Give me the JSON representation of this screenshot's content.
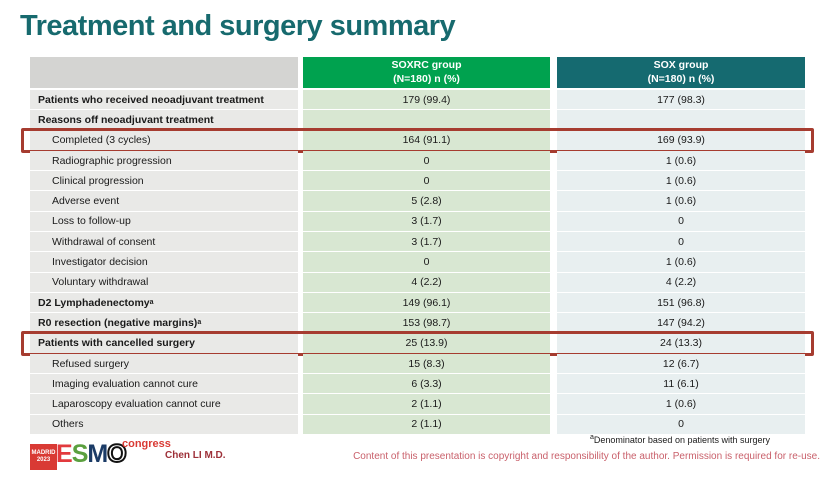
{
  "title": "Treatment and surgery summary",
  "colors": {
    "title_teal": "#176a6e",
    "soxrc_header_green": "#00a24f",
    "sox_header_teal": "#156a70",
    "highlight_box_red": "#a63c30",
    "label_cell_gray": "#e9e9e7",
    "soxrc_cell_green": "#d8e7d2",
    "sox_cell_blue": "#e8eff0"
  },
  "table": {
    "columns": [
      {
        "name": "SOXRC group",
        "sub": "(N=180)  n (%)"
      },
      {
        "name": "SOX group",
        "sub": "(N=180)  n (%)"
      }
    ],
    "rows": [
      {
        "label": "Patients who received neoadjuvant treatment",
        "bold": true,
        "indent": false,
        "highlight": false,
        "soxrc": "179 (99.4)",
        "sox": "177 (98.3)"
      },
      {
        "label": "Reasons off neoadjuvant treatment",
        "bold": true,
        "indent": false,
        "highlight": false,
        "soxrc": "",
        "sox": ""
      },
      {
        "label": "Completed (3 cycles)",
        "bold": false,
        "indent": true,
        "highlight": true,
        "soxrc": "164 (91.1)",
        "sox": "169 (93.9)"
      },
      {
        "label": "Radiographic progression",
        "bold": false,
        "indent": true,
        "highlight": false,
        "soxrc": "0",
        "sox": "1 (0.6)"
      },
      {
        "label": "Clinical progression",
        "bold": false,
        "indent": true,
        "highlight": false,
        "soxrc": "0",
        "sox": "1 (0.6)"
      },
      {
        "label": "Adverse event",
        "bold": false,
        "indent": true,
        "highlight": false,
        "soxrc": "5 (2.8)",
        "sox": "1 (0.6)"
      },
      {
        "label": "Loss to follow-up",
        "bold": false,
        "indent": true,
        "highlight": false,
        "soxrc": "3 (1.7)",
        "sox": "0"
      },
      {
        "label": "Withdrawal of consent",
        "bold": false,
        "indent": true,
        "highlight": false,
        "soxrc": "3 (1.7)",
        "sox": "0"
      },
      {
        "label": "Investigator decision",
        "bold": false,
        "indent": true,
        "highlight": false,
        "soxrc": "0",
        "sox": "1 (0.6)"
      },
      {
        "label": "Voluntary withdrawal",
        "bold": false,
        "indent": true,
        "highlight": false,
        "soxrc": "4 (2.2)",
        "sox": "4 (2.2)"
      },
      {
        "label": "D2 Lymphadenectomy",
        "sup": "a",
        "bold": true,
        "indent": false,
        "highlight": false,
        "soxrc": "149 (96.1)",
        "sox": "151 (96.8)"
      },
      {
        "label": "R0 resection (negative margins)",
        "sup": "a",
        "bold": true,
        "indent": false,
        "highlight": false,
        "soxrc": "153 (98.7)",
        "sox": "147 (94.2)"
      },
      {
        "label": "Patients with cancelled surgery",
        "bold": true,
        "indent": false,
        "highlight": true,
        "soxrc": "25 (13.9)",
        "sox": "24 (13.3)"
      },
      {
        "label": "Refused surgery",
        "bold": false,
        "indent": true,
        "highlight": false,
        "soxrc": "15 (8.3)",
        "sox": "12 (6.7)"
      },
      {
        "label": "Imaging evaluation cannot cure",
        "bold": false,
        "indent": true,
        "highlight": false,
        "soxrc": "6 (3.3)",
        "sox": "11 (6.1)"
      },
      {
        "label": "Laparoscopy evaluation cannot cure",
        "bold": false,
        "indent": true,
        "highlight": false,
        "soxrc": "2 (1.1)",
        "sox": "1 (0.6)"
      },
      {
        "label": "Others",
        "bold": false,
        "indent": true,
        "highlight": false,
        "soxrc": "2 (1.1)",
        "sox": "0"
      }
    ]
  },
  "footer": {
    "footnote_sup": "a",
    "footnote_text": "Denominator based on patients with surgery",
    "author": "Chen LI M.D.",
    "copyright": "Content of this presentation is copyright and responsibility of the author.  Permission is required for re-use.",
    "logo": {
      "badge_line1": "MADRID",
      "badge_line2": "2023",
      "letters": [
        "E",
        "S",
        "M",
        "O"
      ],
      "congress": "congress"
    }
  }
}
